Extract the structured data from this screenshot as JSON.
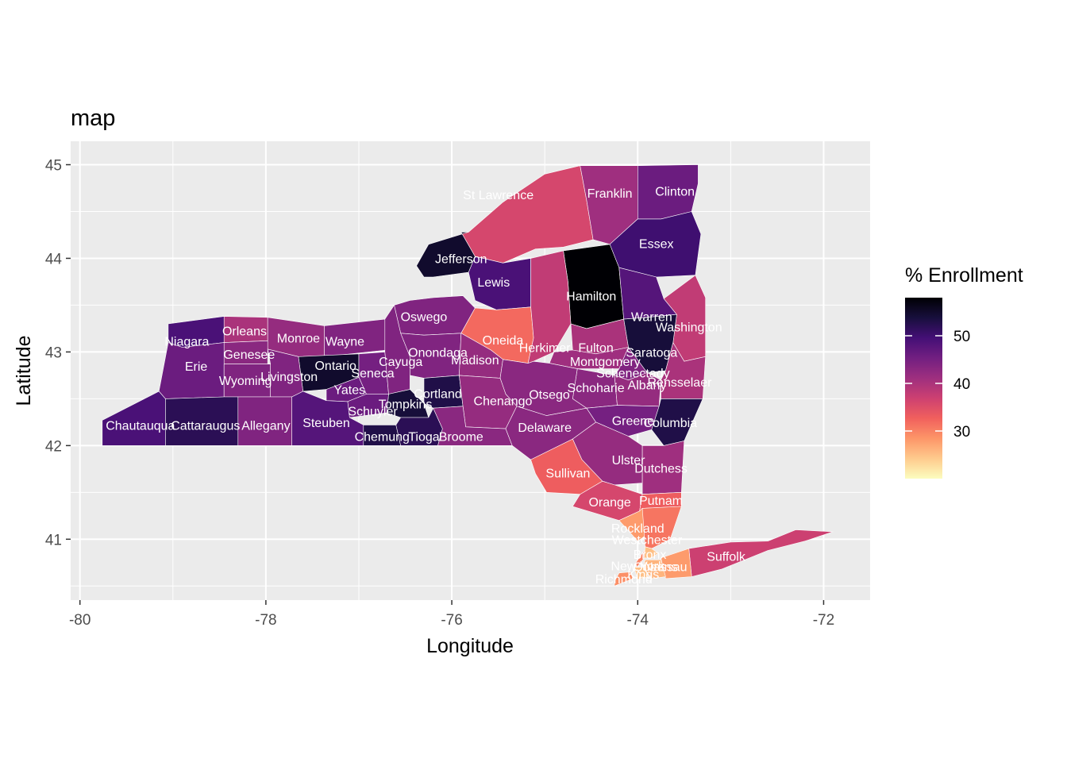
{
  "chart_data": {
    "type": "choropleth",
    "title": "map",
    "xlabel": "Longitude",
    "ylabel": "Latitude",
    "xlim": [
      -80.1,
      -71.5
    ],
    "ylim": [
      40.35,
      45.25
    ],
    "x_ticks": [
      -80,
      -78,
      -76,
      -74,
      -72
    ],
    "y_ticks": [
      41,
      42,
      43,
      44,
      45
    ],
    "x_tick_labels": [
      "-80",
      "-78",
      "-76",
      "-74",
      "-72"
    ],
    "y_tick_labels": [
      "41",
      "42",
      "43",
      "44",
      "45"
    ],
    "grid": true,
    "legend": {
      "title": "% Enrollment",
      "position": "right",
      "range": [
        20,
        58
      ],
      "breaks": [
        30,
        40,
        50
      ],
      "break_labels": [
        "30",
        "40",
        "50"
      ],
      "palette": "magma",
      "stops": [
        "#fcfdbf",
        "#feca8d",
        "#fd9668",
        "#f1605d",
        "#cd4071",
        "#9e2f7f",
        "#721f81",
        "#440f76",
        "#180f3d",
        "#000004"
      ]
    },
    "counties": [
      {
        "name": "St Lawrence",
        "value": 36,
        "label_at": [
          -75.5,
          44.68
        ]
      },
      {
        "name": "Franklin",
        "value": 41,
        "label_at": [
          -74.3,
          44.7
        ]
      },
      {
        "name": "Clinton",
        "value": 46,
        "label_at": [
          -73.6,
          44.72
        ]
      },
      {
        "name": "Essex",
        "value": 50,
        "label_at": [
          -73.8,
          44.16
        ]
      },
      {
        "name": "Jefferson",
        "value": 55,
        "label_at": [
          -75.9,
          44.0
        ]
      },
      {
        "name": "Lewis",
        "value": 49,
        "label_at": [
          -75.55,
          43.75
        ]
      },
      {
        "name": "Hamilton",
        "value": 58,
        "label_at": [
          -74.5,
          43.6
        ]
      },
      {
        "name": "Warren",
        "value": 48,
        "label_at": [
          -73.85,
          43.38
        ]
      },
      {
        "name": "Washington",
        "value": 38,
        "label_at": [
          -73.45,
          43.27
        ]
      },
      {
        "name": "Oswego",
        "value": 44,
        "label_at": [
          -76.3,
          43.38
        ]
      },
      {
        "name": "Oneida",
        "value": 32,
        "label_at": [
          -75.45,
          43.13
        ]
      },
      {
        "name": "Herkimer",
        "value": 38,
        "label_at": [
          -75.0,
          43.05
        ]
      },
      {
        "name": "Fulton",
        "value": 40,
        "label_at": [
          -74.45,
          43.05
        ]
      },
      {
        "name": "Saratoga",
        "value": 54,
        "label_at": [
          -73.85,
          43.0
        ]
      },
      {
        "name": "Orleans",
        "value": 40,
        "label_at": [
          -78.23,
          43.23
        ]
      },
      {
        "name": "Niagara",
        "value": 49,
        "label_at": [
          -78.85,
          43.12
        ]
      },
      {
        "name": "Monroe",
        "value": 42,
        "label_at": [
          -77.65,
          43.15
        ]
      },
      {
        "name": "Wayne",
        "value": 44,
        "label_at": [
          -77.15,
          43.12
        ]
      },
      {
        "name": "Genesee",
        "value": 43,
        "label_at": [
          -78.18,
          42.98
        ]
      },
      {
        "name": "Erie",
        "value": 46,
        "label_at": [
          -78.75,
          42.85
        ]
      },
      {
        "name": "Ontario",
        "value": 55,
        "label_at": [
          -77.25,
          42.86
        ]
      },
      {
        "name": "Seneca",
        "value": 45,
        "label_at": [
          -76.85,
          42.78
        ]
      },
      {
        "name": "Cayuga",
        "value": 44,
        "label_at": [
          -76.55,
          42.9
        ]
      },
      {
        "name": "Onondaga",
        "value": 44,
        "label_at": [
          -76.15,
          43.0
        ]
      },
      {
        "name": "Madison",
        "value": 42,
        "label_at": [
          -75.75,
          42.92
        ]
      },
      {
        "name": "Montgomery",
        "value": 41,
        "label_at": [
          -74.35,
          42.9
        ]
      },
      {
        "name": "Schenectady",
        "value": 44,
        "label_at": [
          -74.05,
          42.78
        ]
      },
      {
        "name": "Wyoming",
        "value": 44,
        "label_at": [
          -78.22,
          42.7
        ]
      },
      {
        "name": "Livingston",
        "value": 44,
        "label_at": [
          -77.75,
          42.74
        ]
      },
      {
        "name": "Yates",
        "value": 46,
        "label_at": [
          -77.1,
          42.6
        ]
      },
      {
        "name": "Schoharie",
        "value": 43,
        "label_at": [
          -74.45,
          42.62
        ]
      },
      {
        "name": "Albany",
        "value": 42,
        "label_at": [
          -73.9,
          42.65
        ]
      },
      {
        "name": "Rensselaer",
        "value": 40,
        "label_at": [
          -73.55,
          42.68
        ]
      },
      {
        "name": "Otsego",
        "value": 43,
        "label_at": [
          -74.95,
          42.55
        ]
      },
      {
        "name": "Cortland",
        "value": 53,
        "label_at": [
          -76.15,
          42.56
        ]
      },
      {
        "name": "Chenango",
        "value": 42,
        "label_at": [
          -75.45,
          42.48
        ]
      },
      {
        "name": "Tompkins",
        "value": 54,
        "label_at": [
          -76.5,
          42.45
        ]
      },
      {
        "name": "Schuyler",
        "value": 46,
        "label_at": [
          -76.85,
          42.37
        ]
      },
      {
        "name": "Chautauqua",
        "value": 49,
        "label_at": [
          -79.35,
          42.22
        ]
      },
      {
        "name": "Cattaraugus",
        "value": 52,
        "label_at": [
          -78.65,
          42.22
        ]
      },
      {
        "name": "Allegany",
        "value": 44,
        "label_at": [
          -78.0,
          42.22
        ]
      },
      {
        "name": "Steuben",
        "value": 48,
        "label_at": [
          -77.35,
          42.25
        ]
      },
      {
        "name": "Chemung",
        "value": 53,
        "label_at": [
          -76.75,
          42.1
        ]
      },
      {
        "name": "Tioga",
        "value": 52,
        "label_at": [
          -76.3,
          42.1
        ]
      },
      {
        "name": "Broome",
        "value": 43,
        "label_at": [
          -75.9,
          42.1
        ]
      },
      {
        "name": "Delaware",
        "value": 43,
        "label_at": [
          -75.0,
          42.2
        ]
      },
      {
        "name": "Greene",
        "value": 45,
        "label_at": [
          -74.05,
          42.27
        ]
      },
      {
        "name": "Columbia",
        "value": 53,
        "label_at": [
          -73.65,
          42.25
        ]
      },
      {
        "name": "Ulster",
        "value": 42,
        "label_at": [
          -74.1,
          41.85
        ]
      },
      {
        "name": "Sullivan",
        "value": 33,
        "label_at": [
          -74.75,
          41.71
        ]
      },
      {
        "name": "Dutchess",
        "value": 41,
        "label_at": [
          -73.75,
          41.76
        ]
      },
      {
        "name": "Orange",
        "value": 36,
        "label_at": [
          -74.3,
          41.4
        ]
      },
      {
        "name": "Putnam",
        "value": 33,
        "label_at": [
          -73.75,
          41.42
        ]
      },
      {
        "name": "Rockland",
        "value": 28,
        "label_at": [
          -74.0,
          41.12
        ]
      },
      {
        "name": "Westchester",
        "value": 31,
        "label_at": [
          -73.9,
          41.0
        ]
      },
      {
        "name": "Suffolk",
        "value": 37,
        "label_at": [
          -73.05,
          40.82
        ]
      },
      {
        "name": "Nassau",
        "value": 28,
        "label_at": [
          -73.7,
          40.71
        ]
      },
      {
        "name": "Bronx",
        "value": 25,
        "label_at": [
          -73.87,
          40.84
        ]
      },
      {
        "name": "New York",
        "value": 30,
        "label_at": [
          -74.0,
          40.72
        ]
      },
      {
        "name": "Queens",
        "value": 26,
        "label_at": [
          -73.81,
          40.71
        ]
      },
      {
        "name": "Kings",
        "value": 25,
        "label_at": [
          -73.94,
          40.63
        ]
      },
      {
        "name": "Richmond",
        "value": 29,
        "label_at": [
          -74.15,
          40.58
        ]
      }
    ]
  }
}
